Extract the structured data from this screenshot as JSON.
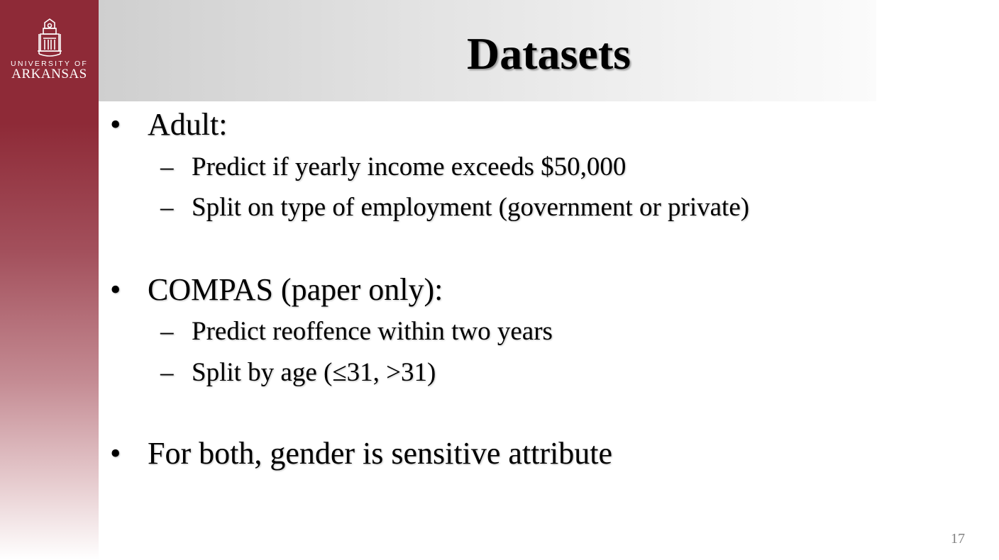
{
  "logo": {
    "line1": "UNIVERSITY OF",
    "line2": "ARKANSAS"
  },
  "slide": {
    "title": "Datasets",
    "bullet_marker": "•",
    "dash_marker": "–",
    "bullets": [
      {
        "text": "Adult:",
        "subitems": [
          "Predict if yearly income exceeds $50,000",
          "Split on type of employment (government or private)"
        ]
      },
      {
        "text": "COMPAS (paper only):",
        "subitems": [
          "Predict reoffence within two years",
          "Split by age (≤31, >31)"
        ]
      },
      {
        "text": "For both, gender is sensitive attribute",
        "subitems": []
      }
    ],
    "page_number": "17"
  },
  "colors": {
    "sidebar": "#8e2a37",
    "title_bar": "#d9d9d9",
    "page_number": "#808080"
  }
}
